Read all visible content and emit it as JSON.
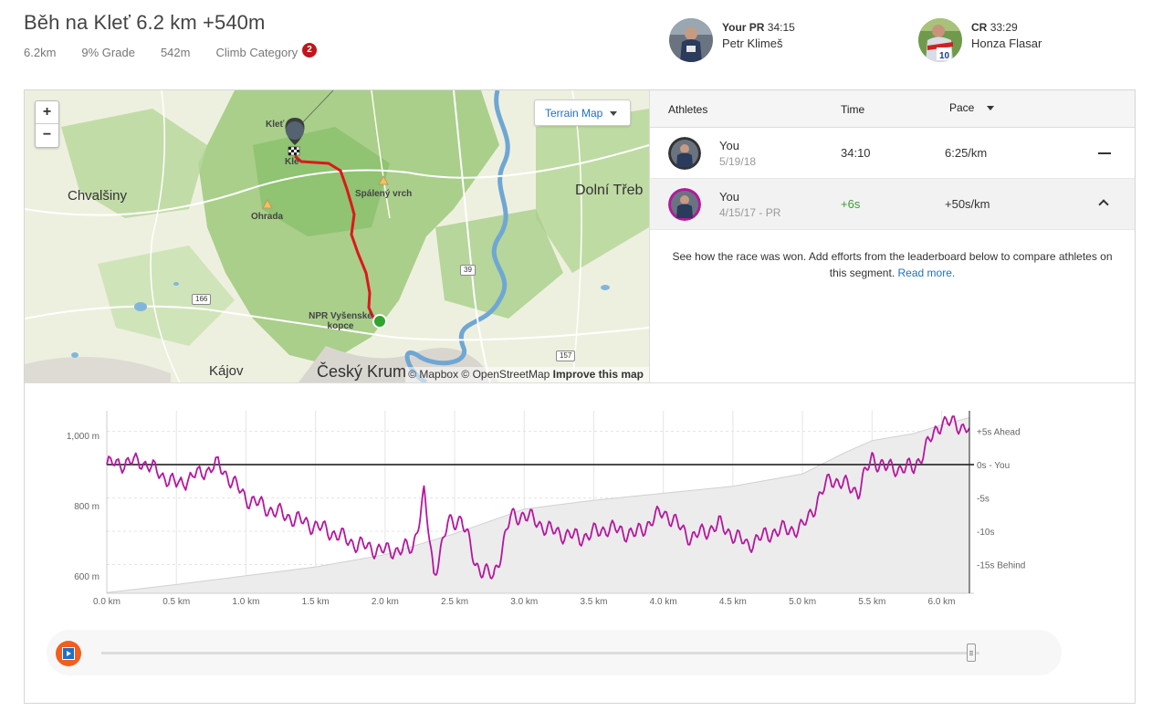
{
  "segment": {
    "title": "Běh na Kleť 6.2 km +540m",
    "distance": "6.2km",
    "grade": "9% Grade",
    "elevation": "542m",
    "climb_label": "Climb Category",
    "climb_category": "2"
  },
  "pr": {
    "label": "Your PR",
    "time": "34:15",
    "athlete": "Petr Klimeš"
  },
  "cr": {
    "label": "CR",
    "time": "33:29",
    "athlete": "Honza Flasar"
  },
  "map": {
    "zoom_in": "+",
    "zoom_out": "−",
    "style_button": "Terrain Map",
    "attribution_1": "© Mapbox © OpenStreetMap",
    "attribution_2": "Improve this map",
    "labels": {
      "chvalsiny": "Chvalšiny",
      "dolni_treb": "Dolní Třeb",
      "kajov": "Kájov",
      "cesky_krumlov": "Český Krum",
      "klet": "Kleť",
      "klet2": "Kle",
      "spaleny": "Spálený vrch",
      "ohrada": "Ohrada",
      "npr_1": "NPR Vyšenské",
      "npr_2": "kopce"
    },
    "roads": [
      "166",
      "39",
      "157"
    ]
  },
  "leaderboard": {
    "columns": {
      "athletes": "Athletes",
      "time": "Time",
      "pace": "Pace"
    },
    "rows": [
      {
        "name": "You",
        "date": "5/19/18",
        "time": "34:10",
        "pace": "6:25/km"
      },
      {
        "name": "You",
        "date": "4/15/17 - PR",
        "time": "+6s",
        "pace": "+50s/km"
      }
    ],
    "note": "See how the race was won. Add efforts from the leaderboard below to compare athletes on this segment.",
    "read_more": "Read more."
  },
  "chart_data": {
    "type": "line",
    "x_ticks": [
      "0.0 km",
      "0.5 km",
      "1.0 km",
      "1.5 km",
      "2.0 km",
      "2.5 km",
      "3.0 km",
      "3.5 km",
      "4.0 km",
      "4.5 km",
      "5.0 km",
      "5.5 km",
      "6.0 km"
    ],
    "y_left_ticks": [
      "1,000 m",
      "800 m",
      "600 m"
    ],
    "y_right_ticks": [
      "+5s Ahead",
      "0s - You",
      "-5s",
      "-10s",
      "-15s Behind"
    ],
    "elevation_series": {
      "x": [
        0,
        0.5,
        1.0,
        1.5,
        2.0,
        2.5,
        3.0,
        3.5,
        4.0,
        4.5,
        5.0,
        5.3,
        5.5,
        5.8,
        6.0,
        6.2
      ],
      "y": [
        552,
        575,
        600,
        625,
        660,
        720,
        790,
        815,
        835,
        855,
        890,
        950,
        985,
        1005,
        1030,
        1050
      ]
    },
    "time_gap_series": {
      "x": [
        0,
        0.25,
        0.5,
        0.8,
        1.0,
        1.2,
        1.4,
        1.6,
        1.8,
        2.0,
        2.2,
        2.28,
        2.35,
        2.45,
        2.55,
        2.65,
        2.78,
        2.9,
        3.0,
        3.2,
        3.4,
        3.6,
        3.8,
        4.0,
        4.2,
        4.4,
        4.6,
        4.8,
        5.0,
        5.2,
        5.4,
        5.5,
        5.6,
        5.8,
        6.0,
        6.2
      ],
      "y": [
        0,
        0.5,
        -3,
        0,
        -5,
        -7,
        -8.5,
        -10,
        -12,
        -13,
        -12.5,
        -4.5,
        -16.5,
        -9,
        -8,
        -15,
        -17,
        -8,
        -7.5,
        -10,
        -11,
        -9.5,
        -10.5,
        -7,
        -11,
        -9,
        -12,
        -10,
        -9.5,
        -2,
        -4,
        1,
        -0.5,
        -0.5,
        6.5,
        5.5
      ]
    },
    "x_range": [
      0,
      6.2
    ],
    "elevation_range": [
      550,
      1070
    ],
    "gap_range": [
      -20,
      7
    ]
  }
}
